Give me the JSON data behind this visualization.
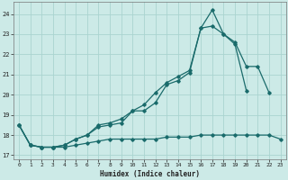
{
  "title": "",
  "xlabel": "Humidex (Indice chaleur)",
  "ylabel": "",
  "background_color": "#cceae7",
  "grid_color": "#aad4d0",
  "line_color": "#1a6b6b",
  "xlim": [
    -0.5,
    23.5
  ],
  "ylim": [
    16.8,
    24.6
  ],
  "yticks": [
    17,
    18,
    19,
    20,
    21,
    22,
    23,
    24
  ],
  "xticks": [
    0,
    1,
    2,
    3,
    4,
    5,
    6,
    7,
    8,
    9,
    10,
    11,
    12,
    13,
    14,
    15,
    16,
    17,
    18,
    19,
    20,
    21,
    22,
    23
  ],
  "line1_x": [
    0,
    1,
    2,
    3,
    4,
    5,
    6,
    7,
    8,
    9,
    10,
    11,
    12,
    13,
    14,
    15,
    16,
    17,
    18,
    19,
    20,
    21,
    22,
    23
  ],
  "line1_y": [
    18.5,
    17.5,
    17.4,
    17.4,
    17.4,
    17.5,
    17.6,
    17.7,
    17.8,
    17.8,
    17.8,
    17.8,
    17.8,
    17.9,
    17.9,
    17.9,
    18.0,
    18.0,
    18.0,
    18.0,
    18.0,
    18.0,
    18.0,
    17.8
  ],
  "line2_x": [
    0,
    1,
    2,
    3,
    4,
    5,
    6,
    7,
    8,
    9,
    10,
    11,
    12,
    13,
    14,
    15,
    16,
    17,
    18,
    19,
    20
  ],
  "line2_y": [
    18.5,
    17.5,
    17.4,
    17.4,
    17.5,
    17.8,
    18.0,
    18.4,
    18.5,
    18.6,
    19.2,
    19.2,
    19.6,
    20.5,
    20.7,
    21.1,
    23.3,
    23.4,
    23.0,
    22.5,
    20.2
  ],
  "line3_x": [
    0,
    1,
    2,
    3,
    4,
    5,
    6,
    7,
    8,
    9,
    10,
    11,
    12,
    13,
    14,
    15,
    16,
    17,
    18,
    19,
    20,
    21,
    22
  ],
  "line3_y": [
    18.5,
    17.5,
    17.4,
    17.4,
    17.5,
    17.8,
    18.0,
    18.5,
    18.6,
    18.8,
    19.2,
    19.5,
    20.1,
    20.6,
    20.9,
    21.2,
    23.3,
    24.2,
    23.0,
    22.6,
    21.4,
    21.4,
    20.1
  ]
}
